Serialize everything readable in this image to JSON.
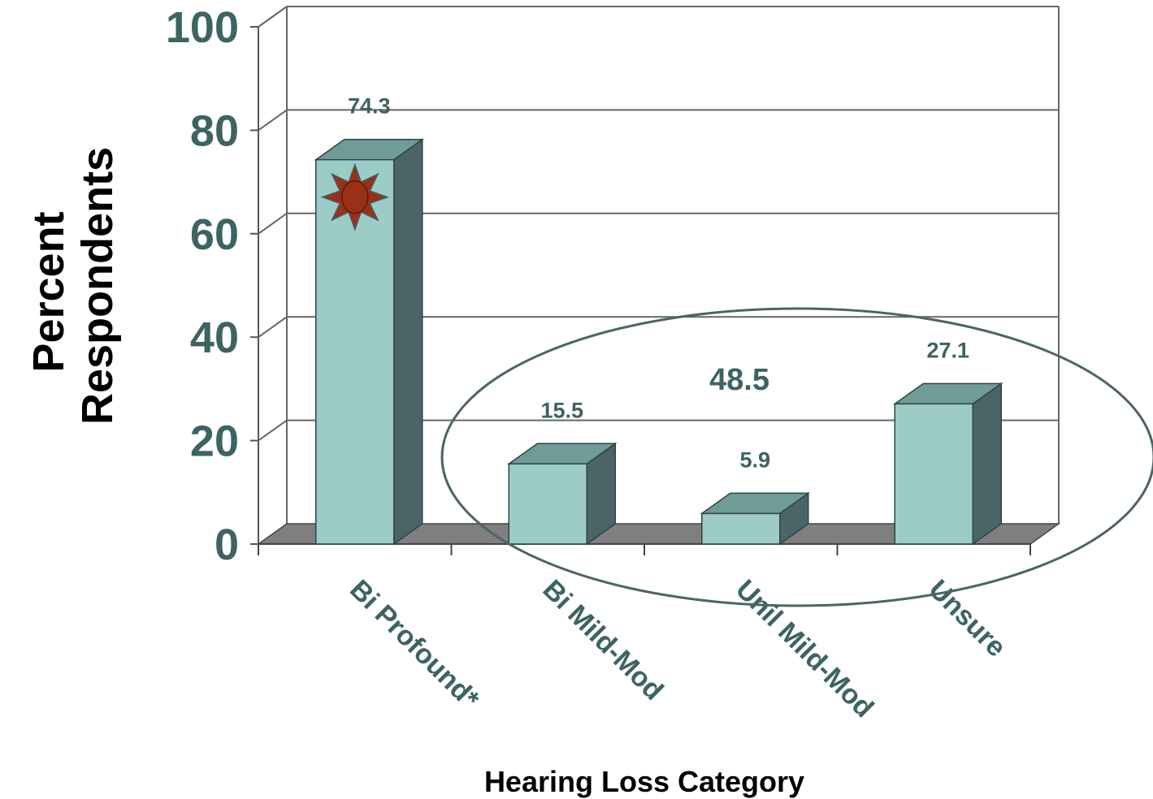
{
  "chart_data": {
    "type": "bar",
    "style": "3d",
    "categories": [
      "Bi Profound*",
      "Bi Mild-Mod",
      "Unil Mild-Mod",
      "Unsure"
    ],
    "values": [
      74.3,
      15.5,
      5.9,
      27.1
    ],
    "value_labels": [
      "74.3",
      "15.5",
      "5.9",
      "27.1"
    ],
    "xlabel": "Hearing Loss Category",
    "ylabel_lines": [
      "Percent",
      "Respondents"
    ],
    "ylim": [
      0,
      100
    ],
    "yticks": [
      0,
      20,
      40,
      60,
      80,
      100
    ],
    "ytick_labels": [
      "0",
      "20",
      "40",
      "60",
      "80",
      "100"
    ],
    "grid": true,
    "annotations": [
      {
        "type": "ellipse",
        "encloses_categories": [
          "Bi Mild-Mod",
          "Unil Mild-Mod",
          "Unsure"
        ],
        "label": "48.5"
      },
      {
        "type": "starburst-icon",
        "on_category": "Bi Profound*"
      }
    ],
    "colors": {
      "bar_front": "#9ccbc8",
      "bar_top": "#6f9b99",
      "bar_side": "#4b6565",
      "text": "#3d6363",
      "floor": "#7f7f7f",
      "starburst": "#9a3018"
    }
  }
}
